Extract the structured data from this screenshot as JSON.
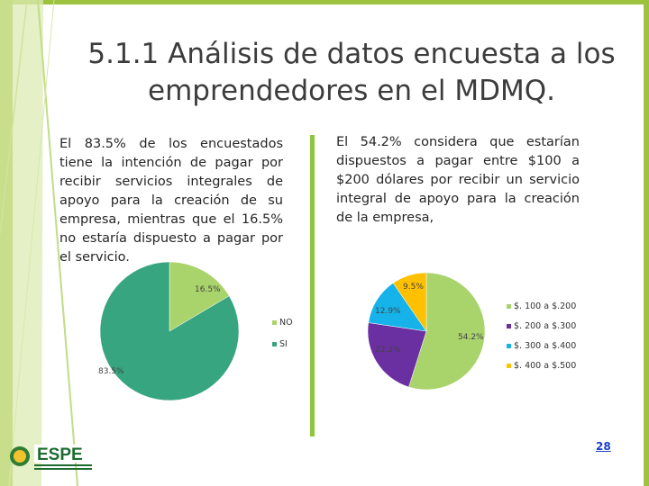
{
  "slide": {
    "title": "5.1.1 Análisis de datos encuesta a los emprendedores en el MDMQ.",
    "left_text": "El 83.5% de los encuestados tiene la intención de pagar por recibir servicios integrales de apoyo para la creación de su empresa, mientras que el 16.5% no estaría dispuesto a pagar por el servicio.",
    "right_text": "El 54.2% considera que estarían dispuestos a pagar entre $100 a $200 dólares por recibir un servicio integral de apoyo para la creación de la empresa,",
    "page_number": "28",
    "logo_text": "ESPE",
    "colors": {
      "green_bar": "#9dc23d",
      "teal": "#3aa883",
      "text": "#3c3c3c"
    }
  },
  "chart_data": [
    {
      "type": "pie",
      "labels": [
        "NO",
        "SI"
      ],
      "values": [
        16.5,
        83.5
      ],
      "data_labels": [
        "16.5%",
        "83.5%"
      ],
      "colors": [
        "#a9d36b",
        "#37a57f"
      ],
      "legend": "right"
    },
    {
      "type": "pie",
      "labels": [
        "$. 100 a $.200",
        "$. 200 a $.300",
        "$. 300 a $.400",
        "$. 400 a $.500"
      ],
      "values": [
        54.2,
        22.2,
        12.9,
        9.5
      ],
      "data_labels": [
        "54.2%",
        "22.2%",
        "12.9%",
        "9.5%"
      ],
      "colors": [
        "#a9d36b",
        "#6a2fa0",
        "#16b3ea",
        "#ffc000"
      ],
      "legend": "right"
    }
  ]
}
